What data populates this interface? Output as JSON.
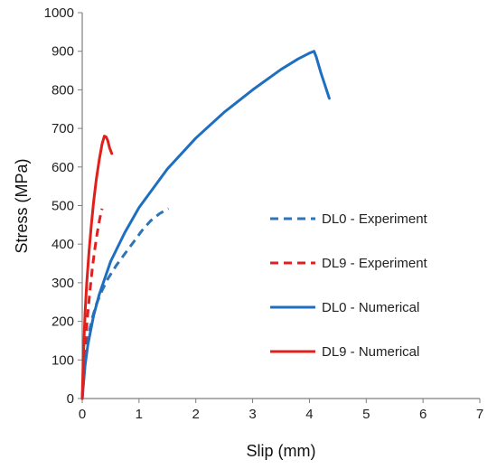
{
  "chart_data": {
    "type": "line",
    "title": "",
    "xlabel": "Slip (mm)",
    "ylabel": "Stress (MPa)",
    "xlim": [
      0,
      7
    ],
    "ylim": [
      0,
      1000
    ],
    "x_ticks": [
      "0",
      "1",
      "2",
      "3",
      "4",
      "5",
      "6",
      "7"
    ],
    "y_ticks": [
      "0",
      "100",
      "200",
      "300",
      "400",
      "500",
      "600",
      "700",
      "800",
      "900",
      "1000"
    ],
    "grid": false,
    "legend_position": "right-middle",
    "series": [
      {
        "name": "DL0 - Experiment",
        "color": "#2e75b6",
        "style": "dashed",
        "x": [
          0.0,
          0.02,
          0.05,
          0.08,
          0.12,
          0.18,
          0.25,
          0.35,
          0.45,
          0.6,
          0.75,
          0.9,
          1.05,
          1.2,
          1.35,
          1.45,
          1.52
        ],
        "y": [
          0,
          40,
          90,
          130,
          170,
          210,
          245,
          280,
          310,
          345,
          375,
          405,
          435,
          460,
          478,
          487,
          492
        ]
      },
      {
        "name": "DL9 - Experiment",
        "color": "#e02020",
        "style": "dashed",
        "x": [
          0.0,
          0.02,
          0.04,
          0.07,
          0.1,
          0.14,
          0.18,
          0.22,
          0.26,
          0.3,
          0.33,
          0.35
        ],
        "y": [
          0,
          60,
          110,
          170,
          225,
          285,
          340,
          385,
          425,
          460,
          480,
          492
        ]
      },
      {
        "name": "DL0 - Numerical",
        "color": "#1f6fc0",
        "style": "solid",
        "x": [
          0.0,
          0.05,
          0.1,
          0.2,
          0.3,
          0.5,
          0.75,
          1.0,
          1.5,
          2.0,
          2.5,
          3.0,
          3.5,
          3.8,
          4.0,
          4.08,
          4.12,
          4.2,
          4.3,
          4.35
        ],
        "y": [
          0,
          85,
          140,
          215,
          270,
          355,
          430,
          495,
          595,
          675,
          742,
          800,
          853,
          880,
          895,
          900,
          885,
          845,
          800,
          778
        ]
      },
      {
        "name": "DL9 - Numerical",
        "color": "#e0201a",
        "style": "solid",
        "x": [
          0.0,
          0.02,
          0.05,
          0.08,
          0.12,
          0.16,
          0.2,
          0.25,
          0.3,
          0.35,
          0.39,
          0.42,
          0.45,
          0.48,
          0.52
        ],
        "y": [
          0,
          110,
          220,
          300,
          380,
          450,
          510,
          570,
          620,
          660,
          680,
          678,
          668,
          650,
          635
        ]
      }
    ]
  }
}
